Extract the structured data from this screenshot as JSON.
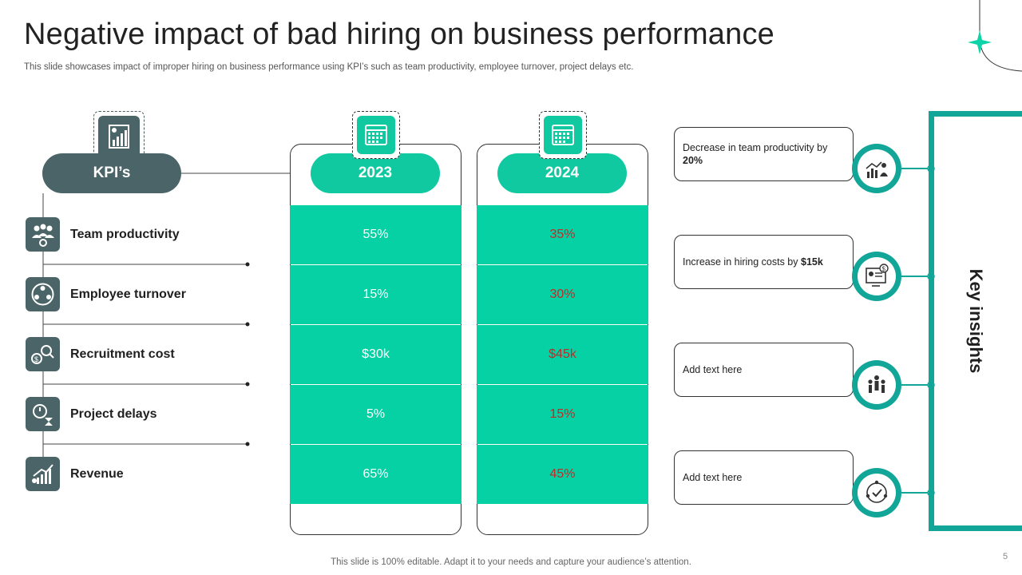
{
  "title": "Negative impact of bad hiring on business performance",
  "subtitle": "This slide showcases impact of improper hiring on business performance using KPI’s such as team productivity, employee turnover, project delays etc.",
  "kpi_header": "KPI’s",
  "years": [
    "2023",
    "2024"
  ],
  "kpis": [
    {
      "label": "Team productivity",
      "icon": "team-gear-icon",
      "v2023": "55%",
      "v2024": "35%"
    },
    {
      "label": "Employee turnover",
      "icon": "people-cycle-icon",
      "v2023": "15%",
      "v2024": "30%"
    },
    {
      "label": "Recruitment cost",
      "icon": "dollar-search-icon",
      "v2023": "$30k",
      "v2024": "$45k"
    },
    {
      "label": "Project delays",
      "icon": "clock-hourglass-icon",
      "v2023": "5%",
      "v2024": "15%"
    },
    {
      "label": "Revenue",
      "icon": "revenue-chart-icon",
      "v2023": "65%",
      "v2024": "45%"
    }
  ],
  "insights": [
    {
      "text": "Decrease in team productivity by ",
      "bold": "20%",
      "icon": "chart-person-icon"
    },
    {
      "text": "Increase in hiring costs by ",
      "bold": "$15k",
      "icon": "resume-dollar-icon"
    },
    {
      "text": "Add text here",
      "bold": "",
      "icon": "team-group-icon"
    },
    {
      "text": "Add text here",
      "bold": "",
      "icon": "check-people-icon"
    }
  ],
  "key_insights_label": "Key insights",
  "footer": "This slide is 100% editable. Adapt it to your needs and capture your audience’s attention.",
  "page_number": "5",
  "colors": {
    "teal": "#06d1a4",
    "dark_teal": "#12a699",
    "slate": "#4b6467",
    "red": "#c62828"
  }
}
